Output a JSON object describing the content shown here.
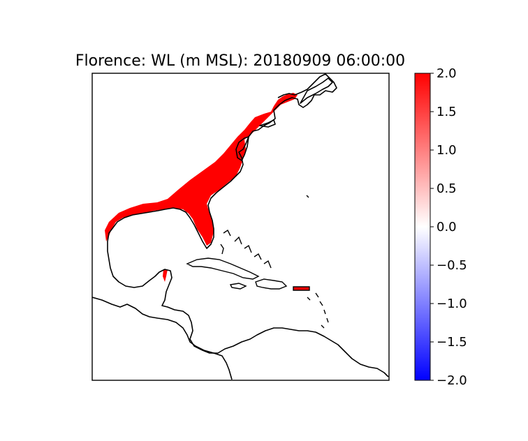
{
  "title": "Florence: WL (m MSL): 20180909 06:00:00",
  "colorbar": {
    "colormap": "bwr",
    "min": -2.0,
    "max": 2.0,
    "ticks": [
      2.0,
      1.5,
      1.0,
      0.5,
      0.0,
      -0.5,
      -1.0,
      -1.5,
      -2.0
    ],
    "tick_labels": [
      "2.0",
      "1.5",
      "1.0",
      "0.5",
      "0.0",
      "−0.5",
      "−1.0",
      "−1.5",
      "−2.0"
    ],
    "colors": {
      "high": "#ff0000",
      "mid": "#ffffff",
      "low": "#0000ff"
    }
  },
  "map": {
    "region": "Western North Atlantic, Gulf of Mexico and Caribbean",
    "surge_color": "#ff0000",
    "coastline_color": "#000000"
  }
}
